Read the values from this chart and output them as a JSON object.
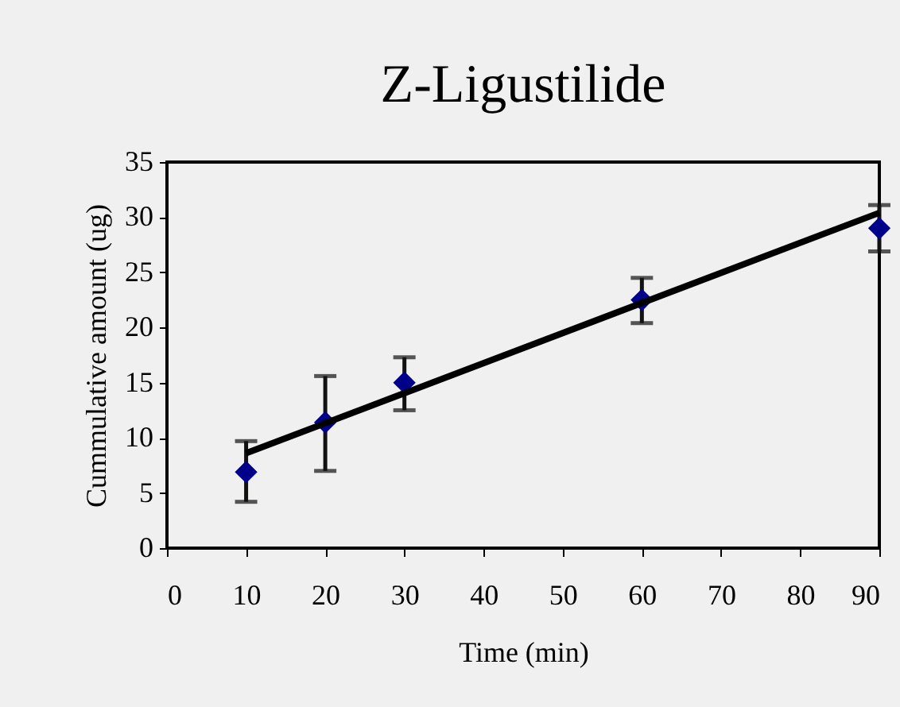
{
  "chart_data": {
    "type": "scatter",
    "title": "Z-Ligustilide",
    "xlabel": "Time (min)",
    "ylabel": "Cummulative amount (ug)",
    "x": [
      10,
      20,
      30,
      60,
      90
    ],
    "series": [
      {
        "color": "#00008b",
        "values": [
          6.9,
          11.4,
          15.0,
          22.5,
          29.0
        ],
        "errors": [
          [
            4.2,
            9.7
          ],
          [
            7.0,
            15.6
          ],
          [
            12.5,
            17.3
          ],
          [
            20.4,
            24.5
          ],
          [
            26.9,
            31.1
          ]
        ]
      },
      {
        "type": "line",
        "marker": "none",
        "color": "#000000",
        "x": [
          10,
          90
        ],
        "values": [
          8.6,
          30.4
        ]
      }
    ],
    "xlim": [
      0,
      90
    ],
    "xticks": [
      0,
      10,
      20,
      30,
      40,
      50,
      60,
      70,
      80,
      90
    ],
    "ylim": [
      0,
      35
    ],
    "yticks": [
      0,
      5,
      10,
      15,
      20,
      25,
      30,
      35
    ],
    "marker": "diamond",
    "line_style": "solid"
  }
}
